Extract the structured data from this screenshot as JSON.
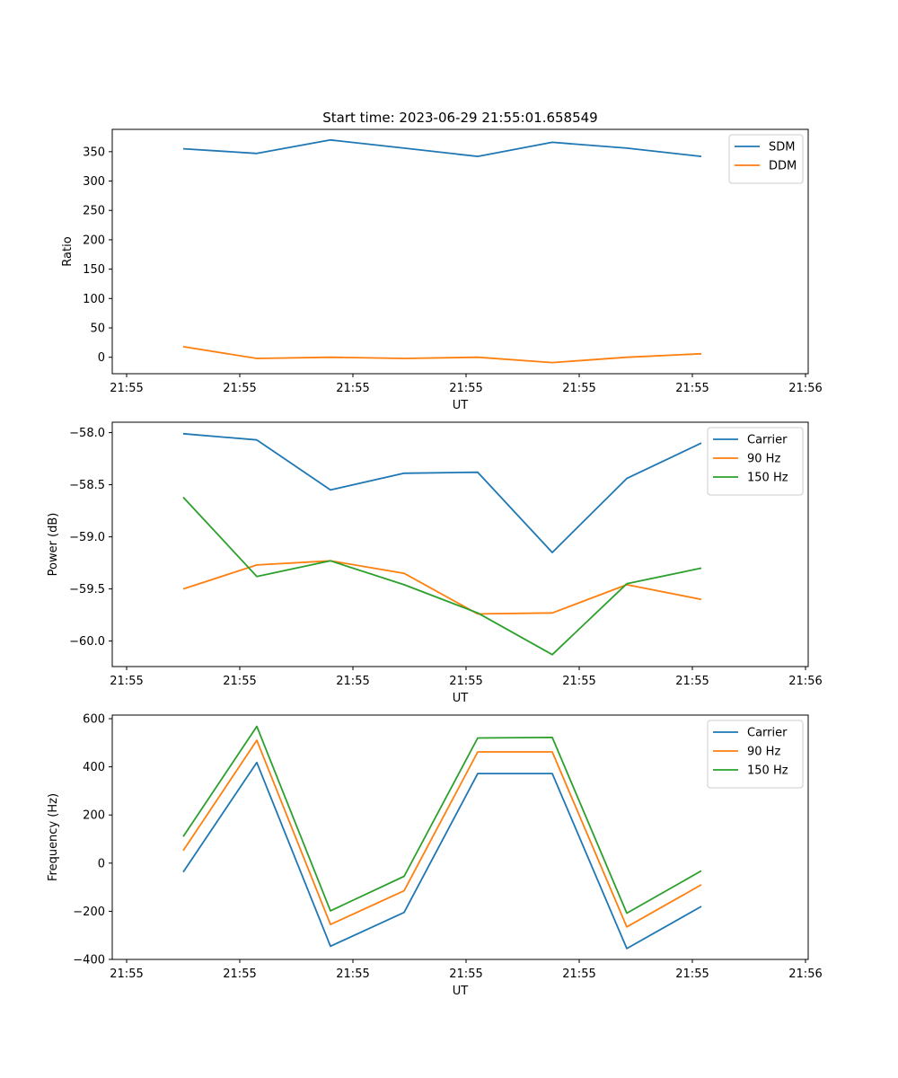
{
  "chart_data": [
    {
      "type": "line",
      "title": "Start time: 2023-06-29 21:55:01.658549",
      "xlabel": "UT",
      "ylabel": "Ratio",
      "x_tick_labels": [
        "21:55",
        "21:55",
        "21:55",
        "21:55",
        "21:55",
        "21:55",
        "21:56"
      ],
      "y_ticks": [
        0,
        50,
        100,
        150,
        200,
        250,
        300,
        350
      ],
      "ylim": [
        -28,
        388
      ],
      "grid": false,
      "legend_position": "top-right",
      "series": [
        {
          "name": "SDM",
          "color": "#1f77b4",
          "values": [
            355,
            347,
            370,
            356,
            342,
            366,
            356,
            342
          ]
        },
        {
          "name": "DDM",
          "color": "#ff7f0e",
          "values": [
            18,
            -2,
            0,
            -2,
            0,
            -9,
            0,
            6
          ]
        }
      ]
    },
    {
      "type": "line",
      "title": "",
      "xlabel": "UT",
      "ylabel": "Power (dB)",
      "x_tick_labels": [
        "21:55",
        "21:55",
        "21:55",
        "21:55",
        "21:55",
        "21:55",
        "21:56"
      ],
      "y_ticks": [
        -60.0,
        -59.5,
        -59.0,
        -58.5,
        -58.0
      ],
      "y_tick_labels": [
        "−60.0",
        "−59.5",
        "−59.0",
        "−58.5",
        "−58.0"
      ],
      "ylim": [
        -60.245,
        -57.9
      ],
      "grid": false,
      "legend_position": "top-right",
      "series": [
        {
          "name": "Carrier",
          "color": "#1f77b4",
          "values": [
            -58.01,
            -58.07,
            -58.55,
            -58.39,
            -58.38,
            -59.15,
            -58.44,
            -58.1
          ]
        },
        {
          "name": "90 Hz",
          "color": "#ff7f0e",
          "values": [
            -59.5,
            -59.27,
            -59.23,
            -59.35,
            -59.74,
            -59.73,
            -59.46,
            -59.6
          ]
        },
        {
          "name": "150 Hz",
          "color": "#2ca02c",
          "values": [
            -58.62,
            -59.38,
            -59.23,
            -59.46,
            -59.73,
            -60.13,
            -59.45,
            -59.3
          ]
        }
      ]
    },
    {
      "type": "line",
      "title": "",
      "xlabel": "UT",
      "ylabel": "Frequency (Hz)",
      "x_tick_labels": [
        "21:55",
        "21:55",
        "21:55",
        "21:55",
        "21:55",
        "21:55",
        "21:56"
      ],
      "y_ticks": [
        -400,
        -200,
        0,
        200,
        400,
        600
      ],
      "y_tick_labels": [
        "−400",
        "−200",
        "0",
        "200",
        "400",
        "600"
      ],
      "ylim": [
        -400,
        615
      ],
      "grid": false,
      "legend_position": "top-right",
      "series": [
        {
          "name": "Carrier",
          "color": "#1f77b4",
          "values": [
            -37,
            418,
            -345,
            -205,
            372,
            372,
            -355,
            -180
          ]
        },
        {
          "name": "90 Hz",
          "color": "#ff7f0e",
          "values": [
            52,
            510,
            -255,
            -115,
            462,
            462,
            -265,
            -90
          ]
        },
        {
          "name": "150 Hz",
          "color": "#2ca02c",
          "values": [
            110,
            568,
            -198,
            -55,
            520,
            522,
            -208,
            -32
          ]
        }
      ]
    }
  ]
}
